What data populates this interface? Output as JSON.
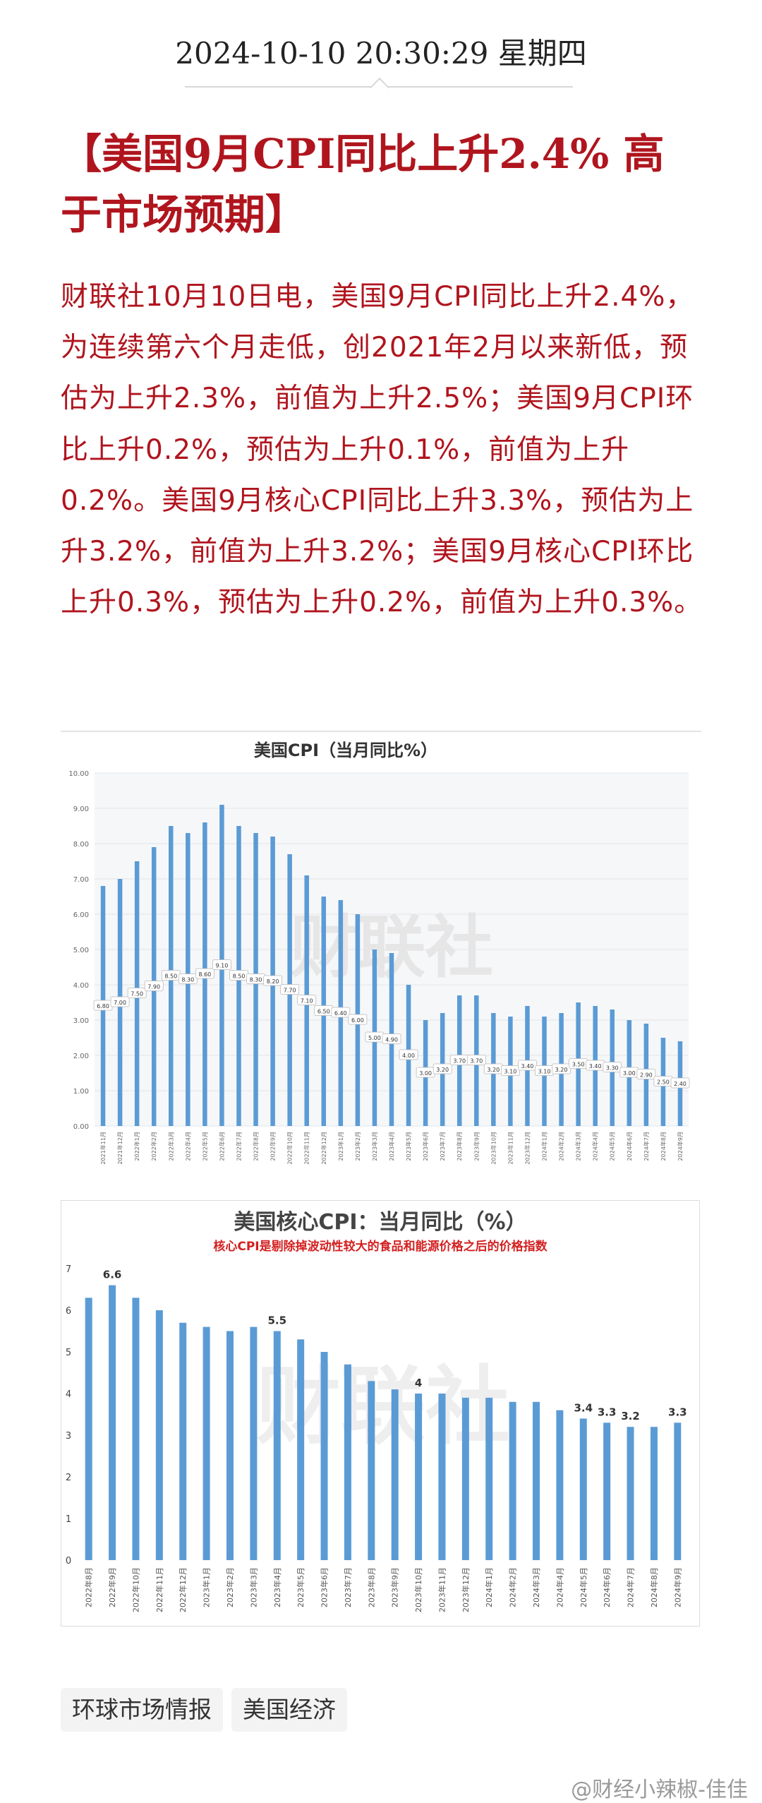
{
  "datetime": "2024-10-10 20:30:29 星期四",
  "headline": "【美国9月CPI同比上升2.4% 高于市场预期】",
  "body": "财联社10月10日电，美国9月CPI同比上升2.4%，为连续第六个月走低，创2021年2月以来新低，预估为上升2.3%，前值为上升2.5%；美国9月CPI环比上升0.2%，预估为上升0.1%，前值为上升0.2%。美国9月核心CPI同比上升3.3%，预估为上升3.2%，前值为上升3.2%；美国9月核心CPI环比上升0.3%，预估为上升0.2%，前值为上升0.3%。",
  "tags": [
    "环球市场情报",
    "美国经济"
  ],
  "footer": "@财经小辣椒-佳佳",
  "watermark": "财联社",
  "colors": {
    "headline": "#b0151e",
    "bar": "#5b9bd5",
    "note": "#d42020"
  },
  "chart_data": [
    {
      "type": "bar",
      "title": "美国CPI（当月同比%）",
      "ylim": [
        0,
        10
      ],
      "yticks": [
        "0.00",
        "1.00",
        "2.00",
        "3.00",
        "4.00",
        "5.00",
        "6.00",
        "7.00",
        "8.00",
        "9.00",
        "10.00"
      ],
      "categories": [
        "2021年11月",
        "2021年12月",
        "2022年1月",
        "2022年2月",
        "2022年3月",
        "2022年4月",
        "2022年5月",
        "2022年6月",
        "2022年7月",
        "2022年8月",
        "2022年9月",
        "2022年10月",
        "2022年11月",
        "2022年12月",
        "2023年1月",
        "2023年2月",
        "2023年3月",
        "2023年4月",
        "2023年5月",
        "2023年6月",
        "2023年7月",
        "2023年8月",
        "2023年9月",
        "2023年10月",
        "2023年11月",
        "2023年12月",
        "2024年1月",
        "2024年2月",
        "2024年3月",
        "2024年4月",
        "2024年5月",
        "2024年6月",
        "2024年7月",
        "2024年8月",
        "2024年9月"
      ],
      "values": [
        6.8,
        7.0,
        7.5,
        7.9,
        8.5,
        8.3,
        8.6,
        9.1,
        8.5,
        8.3,
        8.2,
        7.7,
        7.1,
        6.5,
        6.4,
        6.0,
        5.0,
        4.9,
        4.0,
        3.0,
        3.2,
        3.7,
        3.7,
        3.2,
        3.1,
        3.4,
        3.1,
        3.2,
        3.5,
        3.4,
        3.3,
        3.0,
        2.9,
        2.5,
        2.4
      ],
      "data_labels": [
        "6.80",
        "7.00",
        "7.50",
        "7.90",
        "8.50",
        "8.30",
        "8.60",
        "9.10",
        "8.50",
        "8.30",
        "8.20",
        "7.70",
        "7.10",
        "6.50",
        "6.40",
        "6.00",
        "5.00",
        "4.90",
        "4.00",
        "3.00",
        "3.20",
        "3.70",
        "3.70",
        "3.20",
        "3.10",
        "3.40",
        "3.10",
        "3.20",
        "3.50",
        "3.40",
        "3.30",
        "3.00",
        "2.90",
        "2.50",
        "2.40"
      ],
      "grid": true,
      "legend": "none"
    },
    {
      "type": "bar",
      "title": "美国核心CPI：当月同比（%）",
      "subtitle": "核心CPI是剔除掉波动性较大的食品和能源价格之后的价格指数",
      "ylim": [
        0,
        7
      ],
      "yticks": [
        "0",
        "1",
        "2",
        "3",
        "4",
        "5",
        "6",
        "7"
      ],
      "categories": [
        "2022年8月",
        "2022年9月",
        "2022年10月",
        "2022年11月",
        "2022年12月",
        "2023年1月",
        "2023年2月",
        "2023年3月",
        "2023年4月",
        "2023年5月",
        "2023年6月",
        "2023年7月",
        "2023年8月",
        "2023年9月",
        "2023年10月",
        "2023年11月",
        "2023年12月",
        "2024年1月",
        "2024年2月",
        "2024年3月",
        "2024年4月",
        "2024年5月",
        "2024年6月",
        "2024年7月",
        "2024年8月",
        "2024年9月"
      ],
      "values": [
        6.3,
        6.6,
        6.3,
        6.0,
        5.7,
        5.6,
        5.5,
        5.6,
        5.5,
        5.3,
        5.0,
        4.7,
        4.3,
        4.1,
        4.0,
        4.0,
        3.9,
        3.9,
        3.8,
        3.8,
        3.6,
        3.4,
        3.3,
        3.2,
        3.2,
        3.3
      ],
      "annotations": [
        {
          "index": 1,
          "text": "6.6"
        },
        {
          "index": 8,
          "text": "5.5"
        },
        {
          "index": 14,
          "text": "4"
        },
        {
          "index": 21,
          "text": "3.4"
        },
        {
          "index": 22,
          "text": "3.3"
        },
        {
          "index": 23,
          "text": "3.2"
        },
        {
          "index": 25,
          "text": "3.3"
        }
      ],
      "grid": false,
      "legend": "none"
    }
  ]
}
